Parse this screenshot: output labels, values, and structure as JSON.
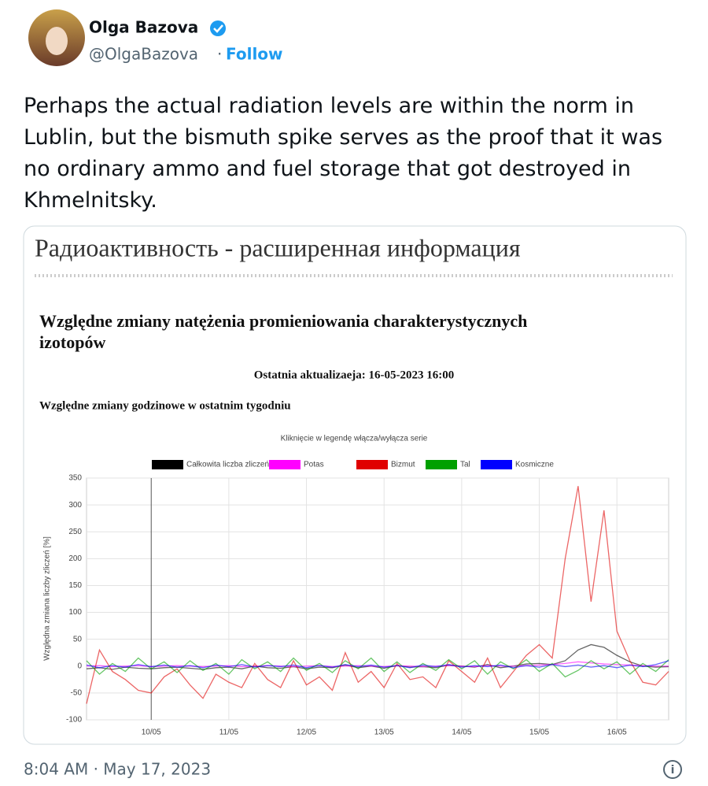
{
  "tweet": {
    "name": "Olga Bazova",
    "handle": "@OlgaBazova",
    "follow": "Follow",
    "text": "Perhaps the actual radiation levels are within the norm in Lublin, but the bismuth spike serves as the proof that it was no ordinary ammo and fuel storage that got destroyed in Khmelnitsky.",
    "timestamp": "8:04 AM · May 17, 2023"
  },
  "card": {
    "header": "Радиоактивность - расширенная информация",
    "title": "Względne zmiany natężenia promieniowania charakterystycznych izotopów",
    "updated": "Ostatnia aktualizaeja: 16-05-2023 16:00",
    "section": "Względne zmiany godzinowe w ostatnim tygodniu"
  },
  "chart_data": {
    "type": "line",
    "subtitle": "Kliknięcie w legendę włącza/wyłącza serie",
    "y_label": "Względna zmiana liczby zliczeń [%]",
    "categories": [
      null,
      null,
      null,
      null,
      null,
      "10/05",
      null,
      null,
      null,
      null,
      null,
      "11/05",
      null,
      null,
      null,
      null,
      null,
      "12/05",
      null,
      null,
      null,
      null,
      null,
      "13/05",
      null,
      null,
      null,
      null,
      null,
      "14/05",
      null,
      null,
      null,
      null,
      null,
      "15/05",
      null,
      null,
      null,
      null,
      null,
      "16/05",
      null,
      null,
      null,
      null
    ],
    "ylim": [
      -100,
      350
    ],
    "yticks": [
      -100,
      -50,
      0,
      50,
      100,
      150,
      200,
      250,
      300,
      350
    ],
    "grid": true,
    "series": [
      {
        "name": "Całkowita liczba zliczeń",
        "color": "#000000",
        "values": [
          -5,
          -3,
          -6,
          -2,
          -4,
          -5,
          -3,
          -2,
          -4,
          -6,
          -3,
          -2,
          -5,
          0,
          -3,
          -4,
          -1,
          -5,
          -2,
          -3,
          2,
          -3,
          0,
          -4,
          1,
          -2,
          -1,
          -3,
          2,
          0,
          -2,
          3,
          -3,
          0,
          4,
          5,
          3,
          10,
          30,
          40,
          35,
          20,
          8,
          0,
          -2,
          -1
        ]
      },
      {
        "name": "Potas",
        "color": "#ff00ff",
        "values": [
          0,
          1,
          -1,
          0,
          1,
          -1,
          0,
          1,
          0,
          -1,
          0,
          1,
          -1,
          0,
          1,
          0,
          -1,
          0,
          1,
          -1,
          0,
          1,
          0,
          -1,
          1,
          0,
          -1,
          0,
          1,
          0,
          -1,
          1,
          0,
          0,
          1,
          2,
          3,
          5,
          8,
          6,
          4,
          3,
          2,
          1,
          0,
          0
        ]
      },
      {
        "name": "Bizmut",
        "color": "#e00000",
        "values": [
          -70,
          30,
          -10,
          -25,
          -45,
          -50,
          -20,
          -5,
          -35,
          -60,
          -15,
          -30,
          -40,
          5,
          -25,
          -40,
          10,
          -35,
          -20,
          -45,
          25,
          -30,
          -10,
          -40,
          5,
          -25,
          -20,
          -40,
          10,
          -10,
          -30,
          15,
          -40,
          -10,
          20,
          40,
          15,
          200,
          335,
          120,
          290,
          65,
          10,
          -30,
          -35,
          -10
        ]
      },
      {
        "name": "Tal",
        "color": "#00a000",
        "values": [
          10,
          -15,
          5,
          -10,
          15,
          -5,
          8,
          -12,
          10,
          -8,
          5,
          -15,
          12,
          -5,
          8,
          -10,
          15,
          -8,
          5,
          -12,
          10,
          -5,
          15,
          -10,
          8,
          -12,
          5,
          -8,
          12,
          -5,
          10,
          -15,
          8,
          -5,
          12,
          -10,
          5,
          -20,
          -8,
          10,
          -5,
          8,
          -15,
          5,
          -10,
          12
        ]
      },
      {
        "name": "Kosmiczne",
        "color": "#0000ff",
        "values": [
          2,
          -3,
          1,
          -2,
          3,
          -1,
          2,
          -2,
          1,
          -3,
          2,
          -1,
          3,
          -2,
          1,
          -1,
          2,
          -3,
          1,
          -2,
          3,
          -1,
          2,
          -2,
          1,
          -3,
          2,
          -1,
          3,
          -2,
          1,
          -1,
          2,
          -3,
          1,
          -2,
          3,
          -1,
          2,
          -2,
          1,
          -3,
          2,
          -1,
          3,
          10
        ]
      }
    ]
  }
}
